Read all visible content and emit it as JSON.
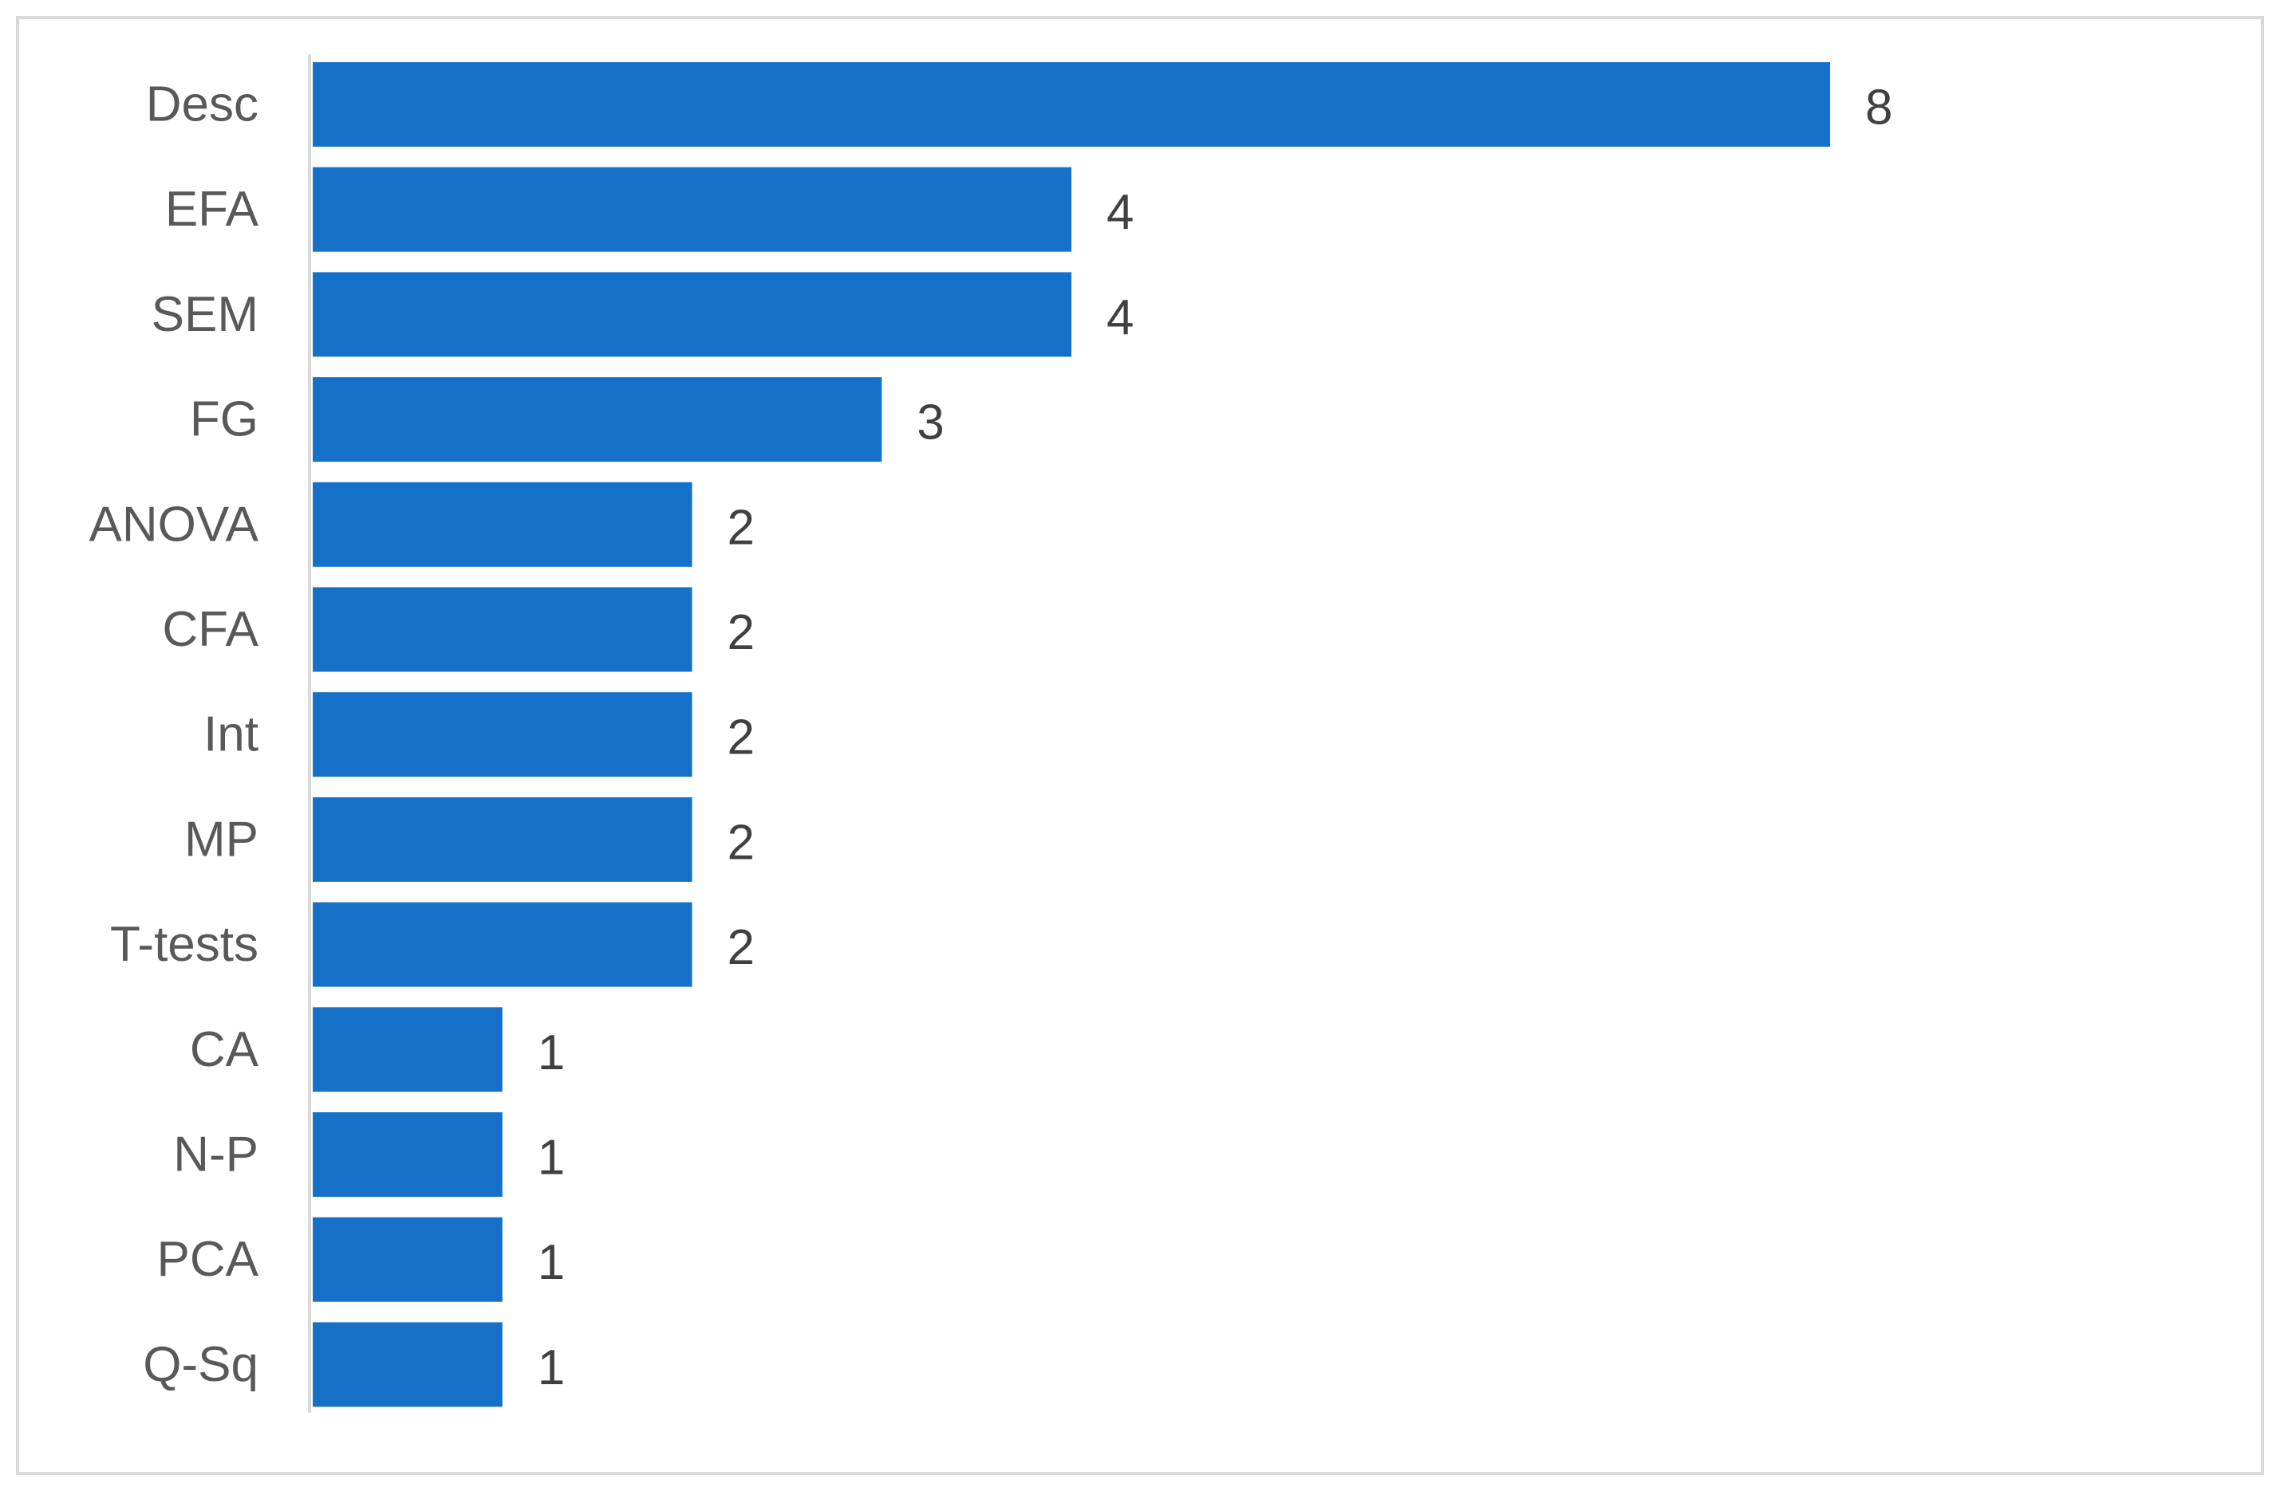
{
  "chart_data": {
    "type": "bar",
    "orientation": "horizontal",
    "categories": [
      "Desc",
      "EFA",
      "SEM",
      "FG",
      "ANOVA",
      "CFA",
      "Int",
      "MP",
      "T-tests",
      "CA",
      "N-P",
      "PCA",
      "Q-Sq"
    ],
    "values": [
      8,
      4,
      4,
      3,
      2,
      2,
      2,
      2,
      2,
      1,
      1,
      1,
      1
    ],
    "title": "",
    "xlabel": "",
    "ylabel": "",
    "xlim": [
      0,
      8
    ],
    "grid": false,
    "legend": "none",
    "data_labels": true,
    "colors": {
      "bar": "#1570c8",
      "axis": "#d9d9d9",
      "frame": "#d9d9d9",
      "category_text": "#595959",
      "value_text": "#404040"
    }
  }
}
